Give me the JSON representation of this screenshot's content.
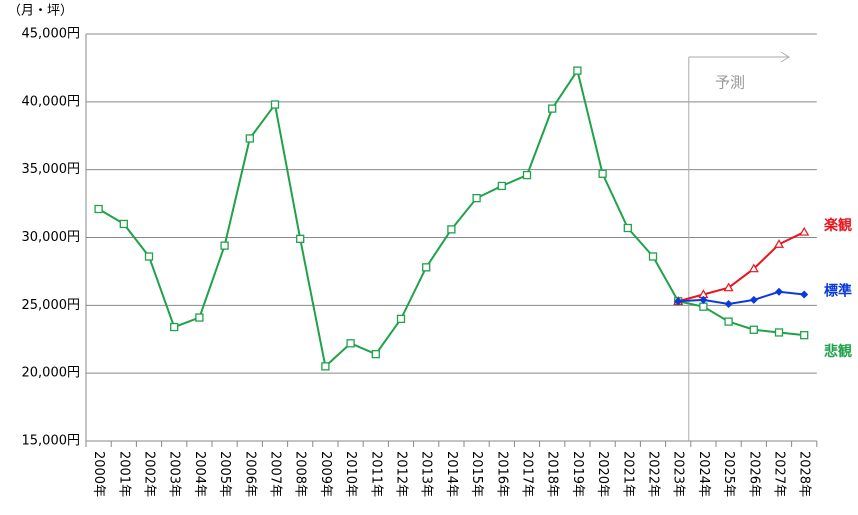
{
  "chart_data": {
    "type": "line",
    "unit_label": "（月・坪）",
    "annotation": "予測",
    "categories": [
      "2000年",
      "2001年",
      "2002年",
      "2003年",
      "2004年",
      "2005年",
      "2006年",
      "2007年",
      "2008年",
      "2009年",
      "2010年",
      "2011年",
      "2012年",
      "2013年",
      "2014年",
      "2015年",
      "2016年",
      "2017年",
      "2018年",
      "2019年",
      "2020年",
      "2021年",
      "2022年",
      "2023年",
      "2024年",
      "2025年",
      "2026年",
      "2027年",
      "2028年"
    ],
    "series": [
      {
        "name": "楽観",
        "color": "#e8141e",
        "marker": "triangle",
        "values": [
          null,
          null,
          null,
          null,
          null,
          null,
          null,
          null,
          null,
          null,
          null,
          null,
          null,
          null,
          null,
          null,
          null,
          null,
          null,
          null,
          null,
          null,
          null,
          25300,
          25800,
          26300,
          27700,
          29500,
          30400
        ]
      },
      {
        "name": "標準",
        "color": "#0a3adc",
        "marker": "diamond",
        "values": [
          null,
          null,
          null,
          null,
          null,
          null,
          null,
          null,
          null,
          null,
          null,
          null,
          null,
          null,
          null,
          null,
          null,
          null,
          null,
          null,
          null,
          null,
          null,
          25300,
          25400,
          25100,
          25400,
          26000,
          25800
        ]
      },
      {
        "name": "悲観",
        "color": "#1fa24a",
        "marker": "square",
        "values": [
          32100,
          31000,
          28600,
          23400,
          24100,
          29400,
          37300,
          39800,
          29900,
          20500,
          22200,
          21400,
          24000,
          27800,
          30600,
          32900,
          33800,
          34600,
          39500,
          42300,
          34700,
          30700,
          28600,
          25300,
          24900,
          23800,
          23200,
          23000,
          22800
        ]
      }
    ],
    "ylim": [
      15000,
      45000
    ],
    "yticks": [
      {
        "value": 15000,
        "label": "15,000円"
      },
      {
        "value": 20000,
        "label": "20,000円"
      },
      {
        "value": 25000,
        "label": "25,000円"
      },
      {
        "value": 30000,
        "label": "30,000円"
      },
      {
        "value": 35000,
        "label": "35,000円"
      },
      {
        "value": 40000,
        "label": "40,000円"
      },
      {
        "value": 45000,
        "label": "45,000円"
      }
    ],
    "grid": true
  }
}
